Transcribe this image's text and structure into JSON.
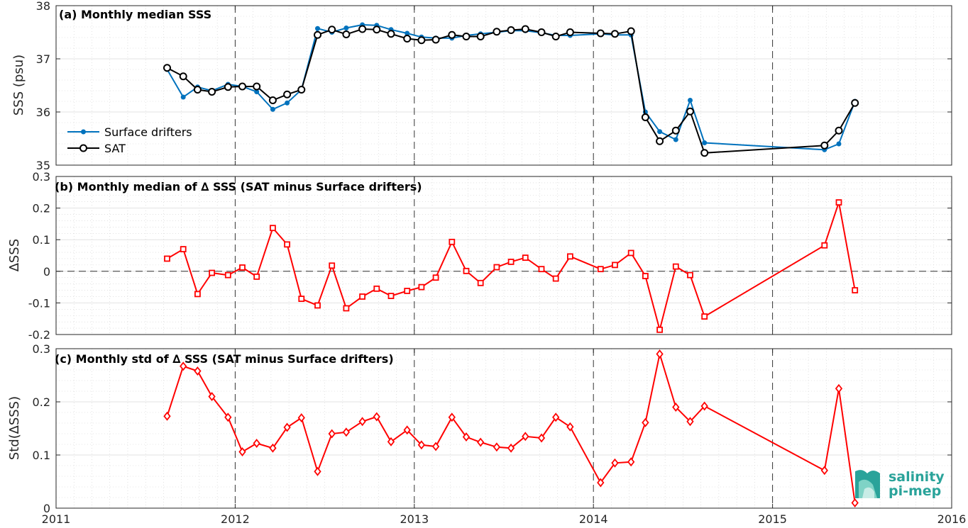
{
  "chart_data": [
    {
      "type": "line",
      "title": "(a) Monthly median SSS",
      "ylabel": "SSS (psu)",
      "xlim": [
        2011,
        2016
      ],
      "ylim": [
        35,
        38
      ],
      "yticks": [
        35,
        36,
        37,
        38
      ],
      "grid": true,
      "legend_position": "lower-left",
      "series": [
        {
          "name": "Surface drifters",
          "color": "#0072bd",
          "marker": "dot",
          "x": [
            2011.62,
            2011.71,
            2011.79,
            2011.87,
            2011.96,
            2012.04,
            2012.12,
            2012.21,
            2012.29,
            2012.37,
            2012.46,
            2012.54,
            2012.62,
            2012.71,
            2012.79,
            2012.87,
            2012.96,
            2013.04,
            2013.12,
            2013.21,
            2013.29,
            2013.37,
            2013.46,
            2013.54,
            2013.62,
            2013.71,
            2013.79,
            2013.87,
            2014.04,
            2014.12,
            2014.21,
            2014.29,
            2014.37,
            2014.46,
            2014.54,
            2014.62,
            2015.29,
            2015.37,
            2015.46
          ],
          "y": [
            36.8,
            36.28,
            36.47,
            36.4,
            36.52,
            36.48,
            36.38,
            36.05,
            36.17,
            36.42,
            37.57,
            37.5,
            37.58,
            37.64,
            37.63,
            37.55,
            37.48,
            37.41,
            37.39,
            37.39,
            37.44,
            37.47,
            37.5,
            37.53,
            37.53,
            37.49,
            37.44,
            37.44,
            37.47,
            37.45,
            37.45,
            36.0,
            35.63,
            35.48,
            36.22,
            35.42,
            35.29,
            35.4,
            36.2
          ]
        },
        {
          "name": "SAT",
          "color": "#000000",
          "marker": "circle",
          "x": [
            2011.62,
            2011.71,
            2011.79,
            2011.87,
            2011.96,
            2012.04,
            2012.12,
            2012.21,
            2012.29,
            2012.37,
            2012.46,
            2012.54,
            2012.62,
            2012.71,
            2012.79,
            2012.87,
            2012.96,
            2013.04,
            2013.12,
            2013.21,
            2013.29,
            2013.37,
            2013.46,
            2013.54,
            2013.62,
            2013.71,
            2013.79,
            2013.87,
            2014.04,
            2014.12,
            2014.21,
            2014.29,
            2014.37,
            2014.46,
            2014.54,
            2014.62,
            2015.29,
            2015.37,
            2015.46
          ],
          "y": [
            36.83,
            36.67,
            36.42,
            36.38,
            36.47,
            36.48,
            36.48,
            36.22,
            36.33,
            36.42,
            37.45,
            37.55,
            37.46,
            37.56,
            37.55,
            37.47,
            37.38,
            37.35,
            37.36,
            37.45,
            37.42,
            37.42,
            37.51,
            37.54,
            37.56,
            37.5,
            37.42,
            37.5,
            37.48,
            37.47,
            37.52,
            35.9,
            35.45,
            35.65,
            36.01,
            35.23,
            35.37,
            35.65,
            36.17
          ]
        }
      ]
    },
    {
      "type": "line",
      "title": "(b) Monthly median of ∆ SSS (SAT minus Surface drifters)",
      "ylabel": "∆SSS",
      "xlim": [
        2011,
        2016
      ],
      "ylim": [
        -0.2,
        0.3
      ],
      "yticks": [
        -0.2,
        -0.1,
        0,
        0.1,
        0.2,
        0.3
      ],
      "zero_line": true,
      "grid": true,
      "series": [
        {
          "color": "#ff0000",
          "marker": "square",
          "x": [
            2011.62,
            2011.71,
            2011.79,
            2011.87,
            2011.96,
            2012.04,
            2012.12,
            2012.21,
            2012.29,
            2012.37,
            2012.46,
            2012.54,
            2012.62,
            2012.71,
            2012.79,
            2012.87,
            2012.96,
            2013.04,
            2013.12,
            2013.21,
            2013.29,
            2013.37,
            2013.46,
            2013.54,
            2013.62,
            2013.71,
            2013.79,
            2013.87,
            2014.04,
            2014.12,
            2014.21,
            2014.29,
            2014.37,
            2014.46,
            2014.54,
            2014.62,
            2015.29,
            2015.37,
            2015.46
          ],
          "y": [
            0.04,
            0.07,
            -0.072,
            -0.005,
            -0.012,
            0.012,
            -0.017,
            0.137,
            0.085,
            -0.087,
            -0.108,
            0.018,
            -0.117,
            -0.08,
            -0.055,
            -0.078,
            -0.062,
            -0.05,
            -0.02,
            0.093,
            0.001,
            -0.037,
            0.013,
            0.03,
            0.043,
            0.007,
            -0.023,
            0.047,
            0.007,
            0.02,
            0.058,
            -0.015,
            -0.185,
            0.015,
            -0.012,
            -0.143,
            0.082,
            0.218,
            -0.06
          ]
        }
      ]
    },
    {
      "type": "line",
      "title": "(c) Monthly std of ∆ SSS (SAT minus Surface drifters)",
      "ylabel": "Std(∆SSS)",
      "xlim": [
        2011,
        2016
      ],
      "ylim": [
        0,
        0.3
      ],
      "yticks": [
        0,
        0.1,
        0.2,
        0.3
      ],
      "xticks": [
        2011,
        2012,
        2013,
        2014,
        2015,
        2016
      ],
      "grid": true,
      "series": [
        {
          "color": "#ff0000",
          "marker": "diamond",
          "x": [
            2011.62,
            2011.71,
            2011.79,
            2011.87,
            2011.96,
            2012.04,
            2012.12,
            2012.21,
            2012.29,
            2012.37,
            2012.46,
            2012.54,
            2012.62,
            2012.71,
            2012.79,
            2012.87,
            2012.96,
            2013.04,
            2013.12,
            2013.21,
            2013.29,
            2013.37,
            2013.46,
            2013.54,
            2013.62,
            2013.71,
            2013.79,
            2013.87,
            2014.04,
            2014.12,
            2014.21,
            2014.29,
            2014.37,
            2014.46,
            2014.54,
            2014.62,
            2015.29,
            2015.37,
            2015.46
          ],
          "y": [
            0.173,
            0.267,
            0.258,
            0.21,
            0.171,
            0.106,
            0.122,
            0.113,
            0.152,
            0.17,
            0.069,
            0.14,
            0.143,
            0.163,
            0.172,
            0.125,
            0.147,
            0.119,
            0.116,
            0.171,
            0.134,
            0.124,
            0.115,
            0.113,
            0.135,
            0.132,
            0.171,
            0.153,
            0.048,
            0.085,
            0.087,
            0.161,
            0.29,
            0.19,
            0.163,
            0.192,
            0.071,
            0.225,
            0.01
          ]
        }
      ]
    }
  ],
  "xtick_labels": [
    "2011",
    "2012",
    "2013",
    "2014",
    "2015",
    "2016"
  ],
  "logo": {
    "line1": "salinity",
    "line2": "pi-mep"
  }
}
